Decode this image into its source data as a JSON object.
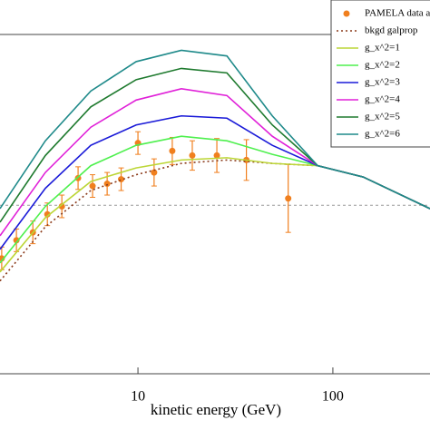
{
  "chart_data": {
    "type": "line",
    "xlabel": "kinetic energy (GeV)",
    "xscale": "log",
    "xlim": [
      1.96,
      315
    ],
    "ylim": [
      0,
      0.3
    ],
    "xticks": [
      10,
      100
    ],
    "hline": 0.149,
    "hline_color": "#999999",
    "series": [
      {
        "name": "PAMELA data a",
        "type": "scatter",
        "color": "#f07f1e",
        "x": [
          2.0,
          2.38,
          2.89,
          3.43,
          4.07,
          4.93,
          5.85,
          6.95,
          8.2,
          10,
          12.1,
          15,
          19,
          25.4,
          36,
          59
        ],
        "values": [
          0.102,
          0.118,
          0.125,
          0.141,
          0.148,
          0.173,
          0.166,
          0.168,
          0.172,
          0.204,
          0.178,
          0.197,
          0.193,
          0.193,
          0.189,
          0.155
        ],
        "errors": [
          0.01,
          0.01,
          0.01,
          0.01,
          0.01,
          0.01,
          0.01,
          0.01,
          0.01,
          0.01,
          0.012,
          0.012,
          0.013,
          0.015,
          0.018,
          0.03
        ]
      },
      {
        "name": "bkgd galprop",
        "color": "#8b3a1a",
        "dashed": true,
        "x": [
          1.96,
          3.35,
          5.73,
          9.79,
          16.7,
          28.6,
          48.9,
          83.6,
          143,
          315
        ],
        "values": [
          0.082,
          0.13,
          0.162,
          0.176,
          0.186,
          0.189,
          0.186,
          0.184,
          0.174,
          0.146
        ]
      },
      {
        "name": "g_x^2=1",
        "color": "#bcd636",
        "x": [
          1.96,
          3.35,
          5.73,
          9.79,
          16.7,
          28.6,
          48.9,
          83.6,
          143,
          315
        ],
        "values": [
          0.09,
          0.138,
          0.17,
          0.182,
          0.189,
          0.191,
          0.186,
          0.184,
          0.174,
          0.146
        ]
      },
      {
        "name": "g_x^2=2",
        "color": "#4ef04e",
        "x": [
          1.96,
          3.35,
          5.73,
          9.79,
          16.7,
          28.6,
          48.9,
          83.6,
          143,
          315
        ],
        "values": [
          0.098,
          0.148,
          0.184,
          0.202,
          0.21,
          0.206,
          0.194,
          0.184,
          0.174,
          0.146
        ]
      },
      {
        "name": "g_x^2=3",
        "color": "#1a1ad8",
        "x": [
          1.96,
          3.35,
          5.73,
          9.79,
          16.7,
          28.6,
          48.9,
          83.6,
          143,
          315
        ],
        "values": [
          0.11,
          0.164,
          0.202,
          0.22,
          0.228,
          0.226,
          0.202,
          0.184,
          0.174,
          0.146
        ]
      },
      {
        "name": "g_x^2=4",
        "color": "#e020d8",
        "x": [
          1.96,
          3.35,
          5.73,
          9.79,
          16.7,
          28.6,
          48.9,
          83.6,
          143,
          315
        ],
        "values": [
          0.122,
          0.178,
          0.218,
          0.242,
          0.252,
          0.246,
          0.21,
          0.184,
          0.174,
          0.146
        ]
      },
      {
        "name": "g_x^2=5",
        "color": "#1e7a2e",
        "x": [
          1.96,
          3.35,
          5.73,
          9.79,
          16.7,
          28.6,
          48.9,
          83.6,
          143,
          315
        ],
        "values": [
          0.134,
          0.193,
          0.236,
          0.26,
          0.27,
          0.266,
          0.22,
          0.184,
          0.174,
          0.146
        ]
      },
      {
        "name": "g_x^2=6",
        "color": "#1f8a8a",
        "x": [
          1.96,
          3.35,
          5.73,
          9.79,
          16.7,
          28.6,
          48.9,
          83.6,
          143,
          315
        ],
        "values": [
          0.146,
          0.206,
          0.25,
          0.276,
          0.286,
          0.281,
          0.228,
          0.184,
          0.174,
          0.146
        ]
      }
    ]
  }
}
